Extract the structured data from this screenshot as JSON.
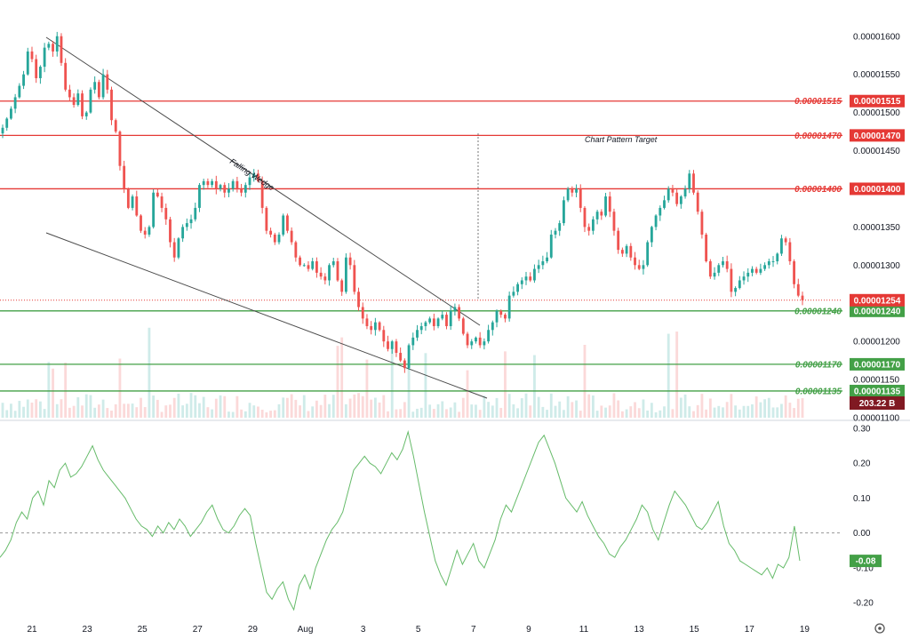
{
  "chart_data": [
    {
      "type": "candlestick",
      "title": "",
      "x_tick_labels": [
        "21",
        "23",
        "25",
        "27",
        "29",
        "Aug",
        "3",
        "5",
        "7",
        "9",
        "11",
        "13",
        "15",
        "17",
        "19"
      ],
      "y_tick_labels": [
        "0.00001600",
        "0.00001550",
        "0.00001500",
        "0.00001450",
        "0.00001400",
        "0.00001350",
        "0.00001300",
        "0.00001250",
        "0.00001200",
        "0.00001150",
        "0.00001100"
      ],
      "ylim": [
        1.1e-05,
        1.63e-05
      ],
      "price_close_series": [
        1.48e-05,
        1.492e-05,
        1.505e-05,
        1.52e-05,
        1.535e-05,
        1.55e-05,
        1.58e-05,
        1.57e-05,
        1.545e-05,
        1.56e-05,
        1.585e-05,
        1.59e-05,
        1.58e-05,
        1.6e-05,
        1.565e-05,
        1.53e-05,
        1.52e-05,
        1.51e-05,
        1.525e-05,
        1.495e-05,
        1.5e-05,
        1.53e-05,
        1.54e-05,
        1.52e-05,
        1.55e-05,
        1.53e-05,
        1.49e-05,
        1.475e-05,
        1.43e-05,
        1.4e-05,
        1.375e-05,
        1.39e-05,
        1.365e-05,
        1.345e-05,
        1.34e-05,
        1.35e-05,
        1.395e-05,
        1.39e-05,
        1.375e-05,
        1.36e-05,
        1.33e-05,
        1.31e-05,
        1.335e-05,
        1.35e-05,
        1.355e-05,
        1.36e-05,
        1.375e-05,
        1.405e-05,
        1.41e-05,
        1.405e-05,
        1.41e-05,
        1.4e-05,
        1.405e-05,
        1.395e-05,
        1.4e-05,
        1.41e-05,
        1.4e-05,
        1.395e-05,
        1.405e-05,
        1.415e-05,
        1.42e-05,
        1.41e-05,
        1.375e-05,
        1.345e-05,
        1.34e-05,
        1.33e-05,
        1.34e-05,
        1.365e-05,
        1.345e-05,
        1.33e-05,
        1.31e-05,
        1.3e-05,
        1.3e-05,
        1.295e-05,
        1.305e-05,
        1.29e-05,
        1.285e-05,
        1.28e-05,
        1.3e-05,
        1.305e-05,
        1.28e-05,
        1.265e-05,
        1.31e-05,
        1.3e-05,
        1.265e-05,
        1.245e-05,
        1.23e-05,
        1.22e-05,
        1.215e-05,
        1.225e-05,
        1.215e-05,
        1.2e-05,
        1.19e-05,
        1.2e-05,
        1.185e-05,
        1.175e-05,
        1.165e-05,
        1.195e-05,
        1.205e-05,
        1.215e-05,
        1.22e-05,
        1.225e-05,
        1.23e-05,
        1.22e-05,
        1.23e-05,
        1.235e-05,
        1.22e-05,
        1.24e-05,
        1.245e-05,
        1.23e-05,
        1.21e-05,
        1.195e-05,
        1.2e-05,
        1.205e-05,
        1.195e-05,
        1.2e-05,
        1.215e-05,
        1.225e-05,
        1.24e-05,
        1.235e-05,
        1.23e-05,
        1.26e-05,
        1.265e-05,
        1.275e-05,
        1.28e-05,
        1.285e-05,
        1.28e-05,
        1.295e-05,
        1.3e-05,
        1.305e-05,
        1.31e-05,
        1.34e-05,
        1.345e-05,
        1.355e-05,
        1.385e-05,
        1.4e-05,
        1.395e-05,
        1.4e-05,
        1.375e-05,
        1.35e-05,
        1.345e-05,
        1.36e-05,
        1.37e-05,
        1.365e-05,
        1.39e-05,
        1.37e-05,
        1.345e-05,
        1.32e-05,
        1.315e-05,
        1.325e-05,
        1.31e-05,
        1.3e-05,
        1.295e-05,
        1.3e-05,
        1.33e-05,
        1.35e-05,
        1.365e-05,
        1.375e-05,
        1.385e-05,
        1.4e-05,
        1.395e-05,
        1.38e-05,
        1.39e-05,
        1.4e-05,
        1.42e-05,
        1.395e-05,
        1.37e-05,
        1.34e-05,
        1.305e-05,
        1.285e-05,
        1.29e-05,
        1.3e-05,
        1.305e-05,
        1.295e-05,
        1.265e-05,
        1.27e-05,
        1.28e-05,
        1.285e-05,
        1.29e-05,
        1.295e-05,
        1.29e-05,
        1.295e-05,
        1.3e-05,
        1.305e-05,
        1.305e-05,
        1.315e-05,
        1.335e-05,
        1.33e-05,
        1.305e-05,
        1.275e-05,
        1.26e-05,
        1.254e-05
      ],
      "levels": [
        {
          "label": "0.00001515",
          "value": 1.515e-05,
          "color": "#e53935"
        },
        {
          "label": "0.00001470",
          "value": 1.47e-05,
          "color": "#e53935"
        },
        {
          "label": "0.00001400",
          "value": 1.4e-05,
          "color": "#e53935"
        },
        {
          "label": "0.00001240",
          "value": 1.24e-05,
          "color": "#43a047"
        },
        {
          "label": "0.00001170",
          "value": 1.17e-05,
          "color": "#43a047"
        },
        {
          "label": "0.00001135",
          "value": 1.135e-05,
          "color": "#43a047"
        }
      ],
      "last_price": {
        "label": "0.00001254",
        "value": 1.254e-05,
        "color": "#e53935"
      },
      "volume_label": {
        "label": "203.22 B",
        "color": "#801922"
      },
      "annotations": [
        "Falling Wedge",
        "Chart Pattern Target"
      ]
    },
    {
      "type": "line",
      "y_tick_labels": [
        "0.30",
        "0.20",
        "0.10",
        "0.00",
        "-0.10",
        "-0.20"
      ],
      "ylim": [
        -0.23,
        0.31
      ],
      "series": [
        {
          "values": [
            -0.07,
            -0.05,
            -0.02,
            0.03,
            0.06,
            0.04,
            0.1,
            0.12,
            0.08,
            0.15,
            0.13,
            0.18,
            0.2,
            0.16,
            0.17,
            0.19,
            0.22,
            0.25,
            0.21,
            0.18,
            0.16,
            0.14,
            0.12,
            0.1,
            0.07,
            0.04,
            0.02,
            0.01,
            -0.01,
            0.02,
            0.0,
            0.03,
            0.01,
            0.04,
            0.02,
            -0.01,
            0.01,
            0.03,
            0.06,
            0.08,
            0.04,
            0.01,
            0.0,
            0.02,
            0.05,
            0.07,
            0.05,
            -0.03,
            -0.1,
            -0.17,
            -0.19,
            -0.16,
            -0.14,
            -0.19,
            -0.22,
            -0.15,
            -0.12,
            -0.16,
            -0.1,
            -0.06,
            -0.02,
            0.01,
            0.03,
            0.06,
            0.12,
            0.18,
            0.2,
            0.22,
            0.2,
            0.19,
            0.17,
            0.2,
            0.23,
            0.21,
            0.24,
            0.29,
            0.22,
            0.14,
            0.06,
            -0.01,
            -0.08,
            -0.12,
            -0.15,
            -0.1,
            -0.05,
            -0.09,
            -0.06,
            -0.03,
            -0.08,
            -0.1,
            -0.06,
            -0.02,
            0.04,
            0.08,
            0.06,
            0.1,
            0.14,
            0.18,
            0.22,
            0.26,
            0.28,
            0.24,
            0.2,
            0.15,
            0.1,
            0.08,
            0.06,
            0.09,
            0.05,
            0.02,
            -0.01,
            -0.03,
            -0.06,
            -0.07,
            -0.04,
            -0.02,
            0.01,
            0.04,
            0.08,
            0.06,
            0.01,
            -0.02,
            0.03,
            0.08,
            0.12,
            0.1,
            0.08,
            0.05,
            0.02,
            0.01,
            0.03,
            0.06,
            0.09,
            0.02,
            -0.03,
            -0.05,
            -0.08,
            -0.09,
            -0.1,
            -0.11,
            -0.12,
            -0.1,
            -0.13,
            -0.09,
            -0.1,
            -0.07,
            0.02,
            -0.08
          ]
        }
      ],
      "reference_line": 0,
      "last_value": {
        "label": "-0.08",
        "color": "#43a047"
      }
    }
  ]
}
